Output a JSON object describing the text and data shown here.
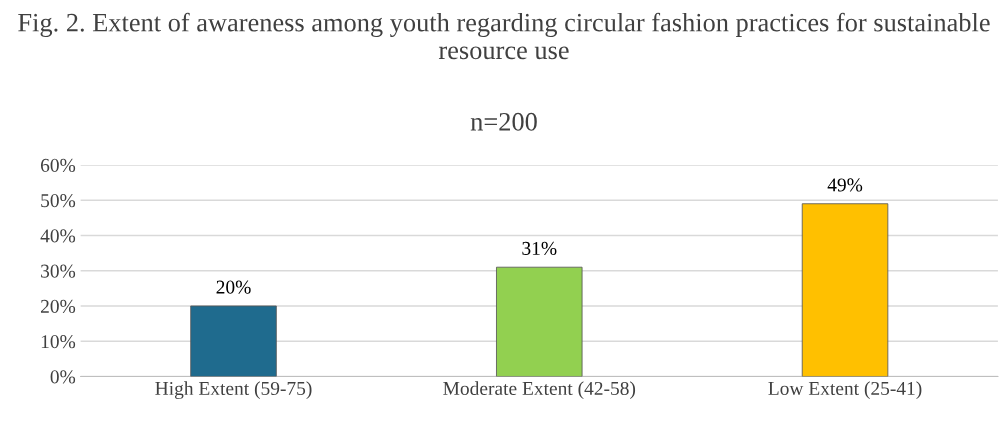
{
  "chart_data": {
    "type": "bar",
    "title": "Fig. 2. Extent of awareness among youth regarding circular fashion practices for sustainable resource use",
    "subtitle": "n=200",
    "categories": [
      "High Extent (59-75)",
      "Moderate Extent (42-58)",
      "Low Extent (25-41)"
    ],
    "values": [
      20,
      31,
      49
    ],
    "colors": [
      "#1f6b8e",
      "#92d050",
      "#ffc000"
    ],
    "value_labels": [
      "20%",
      "31%",
      "49%"
    ],
    "ylim": [
      0,
      60
    ],
    "yticks": [
      {
        "value": 0,
        "label": "0%"
      },
      {
        "value": 10,
        "label": "10%"
      },
      {
        "value": 20,
        "label": "20%"
      },
      {
        "value": 30,
        "label": "30%"
      },
      {
        "value": 40,
        "label": "40%"
      },
      {
        "value": 50,
        "label": "50%"
      },
      {
        "value": 60,
        "label": "60%"
      }
    ],
    "grid": "y",
    "legend": false
  }
}
